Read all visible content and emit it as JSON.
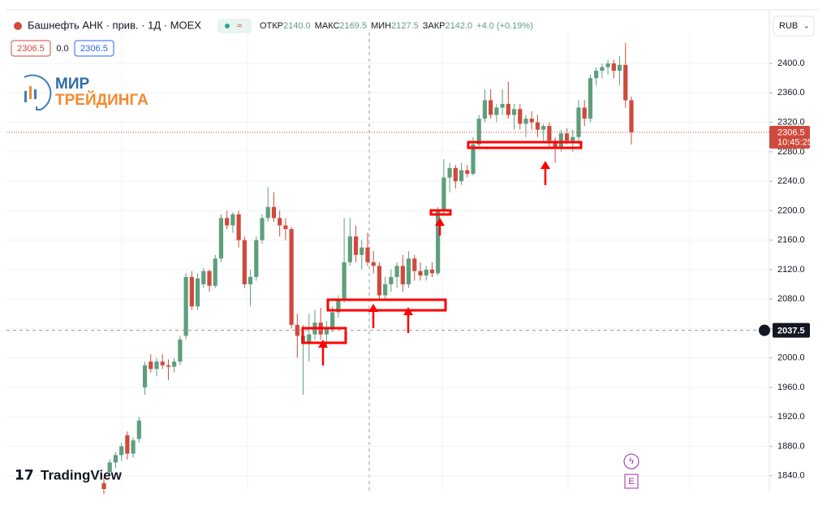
{
  "header": {
    "symbol": "Башнефть АНК · прив. · 1Д · MOEX",
    "open_label": "ОТКР",
    "open": "2140.0",
    "high_label": "МАКС",
    "high": "2169.5",
    "low_label": "МИН",
    "low": "2127.5",
    "close_label": "ЗАКР",
    "close": "2142.0",
    "change": "+4.0 (+0.19%)",
    "sell": "2306.5",
    "spread": "0.0",
    "buy": "2306.5",
    "currency": "RUB"
  },
  "logo": {
    "line1": "МИР",
    "line2": "ТРЕЙДИНГА"
  },
  "brand": "TradingView",
  "event_marker": "E",
  "chart_data": {
    "type": "candlestick",
    "color_up": "#5f9e7d",
    "color_down": "#cf4a3c",
    "ylim": [
      1822,
      2442
    ],
    "yticks": [
      {
        "value": 1840,
        "label": "1840.0"
      },
      {
        "value": 1880,
        "label": "1880.0"
      },
      {
        "value": 1920,
        "label": "1920.0"
      },
      {
        "value": 1960,
        "label": "1960.0"
      },
      {
        "value": 2000,
        "label": "2000.0"
      },
      {
        "value": 2040,
        "label": "2040.0"
      },
      {
        "value": 2080,
        "label": "2080.0"
      },
      {
        "value": 2120,
        "label": "2120.0"
      },
      {
        "value": 2160,
        "label": "2160.0"
      },
      {
        "value": 2200,
        "label": "2200.0"
      },
      {
        "value": 2240,
        "label": "2240.0"
      },
      {
        "value": 2280,
        "label": "2280.0"
      },
      {
        "value": 2320,
        "label": "2320.0"
      },
      {
        "value": 2360,
        "label": "2360.0"
      },
      {
        "value": 2400,
        "label": "2400.0"
      }
    ],
    "grid": true,
    "last_price": 2306.5,
    "last_time": "10:45:25",
    "crosshair_price": 2037.5,
    "candles": [
      {
        "o": 1830,
        "h": 1838,
        "l": 1815,
        "c": 1822
      },
      {
        "o": 1845,
        "h": 1862,
        "l": 1840,
        "c": 1858
      },
      {
        "o": 1858,
        "h": 1872,
        "l": 1850,
        "c": 1868
      },
      {
        "o": 1868,
        "h": 1885,
        "l": 1860,
        "c": 1880
      },
      {
        "o": 1895,
        "h": 1900,
        "l": 1862,
        "c": 1870
      },
      {
        "o": 1870,
        "h": 1892,
        "l": 1865,
        "c": 1888
      },
      {
        "o": 1890,
        "h": 1920,
        "l": 1885,
        "c": 1915
      },
      {
        "o": 1960,
        "h": 1995,
        "l": 1950,
        "c": 1990
      },
      {
        "o": 1995,
        "h": 2005,
        "l": 1980,
        "c": 1985
      },
      {
        "o": 1985,
        "h": 2000,
        "l": 1975,
        "c": 1995
      },
      {
        "o": 1995,
        "h": 2005,
        "l": 1985,
        "c": 1990
      },
      {
        "o": 1990,
        "h": 1998,
        "l": 1970,
        "c": 1988
      },
      {
        "o": 1988,
        "h": 2000,
        "l": 1980,
        "c": 1995
      },
      {
        "o": 1995,
        "h": 2030,
        "l": 1990,
        "c": 2025
      },
      {
        "o": 2030,
        "h": 2115,
        "l": 2025,
        "c": 2110
      },
      {
        "o": 2110,
        "h": 2118,
        "l": 2065,
        "c": 2070
      },
      {
        "o": 2070,
        "h": 2115,
        "l": 2065,
        "c": 2108
      },
      {
        "o": 2100,
        "h": 2122,
        "l": 2095,
        "c": 2118
      },
      {
        "o": 2118,
        "h": 2120,
        "l": 2090,
        "c": 2098
      },
      {
        "o": 2098,
        "h": 2140,
        "l": 2095,
        "c": 2135
      },
      {
        "o": 2135,
        "h": 2195,
        "l": 2130,
        "c": 2190
      },
      {
        "o": 2190,
        "h": 2200,
        "l": 2175,
        "c": 2180
      },
      {
        "o": 2180,
        "h": 2198,
        "l": 2170,
        "c": 2195
      },
      {
        "o": 2195,
        "h": 2200,
        "l": 2150,
        "c": 2160
      },
      {
        "o": 2160,
        "h": 2165,
        "l": 2095,
        "c": 2100
      },
      {
        "o": 2100,
        "h": 2120,
        "l": 2070,
        "c": 2110
      },
      {
        "o": 2110,
        "h": 2165,
        "l": 2105,
        "c": 2160
      },
      {
        "o": 2160,
        "h": 2195,
        "l": 2155,
        "c": 2190
      },
      {
        "o": 2190,
        "h": 2232,
        "l": 2185,
        "c": 2205
      },
      {
        "o": 2205,
        "h": 2225,
        "l": 2185,
        "c": 2190
      },
      {
        "o": 2190,
        "h": 2200,
        "l": 2165,
        "c": 2180
      },
      {
        "o": 2180,
        "h": 2190,
        "l": 2160,
        "c": 2175
      },
      {
        "o": 2175,
        "h": 2178,
        "l": 2040,
        "c": 2045
      },
      {
        "o": 2045,
        "h": 2060,
        "l": 2000,
        "c": 2030
      },
      {
        "o": 2020,
        "h": 2045,
        "l": 1950,
        "c": 2030
      },
      {
        "o": 2020,
        "h": 2060,
        "l": 1995,
        "c": 2032
      },
      {
        "o": 2032,
        "h": 2065,
        "l": 2025,
        "c": 2048
      },
      {
        "o": 2048,
        "h": 2068,
        "l": 2025,
        "c": 2032
      },
      {
        "o": 2032,
        "h": 2050,
        "l": 2015,
        "c": 2042
      },
      {
        "o": 2042,
        "h": 2070,
        "l": 2035,
        "c": 2062
      },
      {
        "o": 2062,
        "h": 2085,
        "l": 2055,
        "c": 2080
      },
      {
        "o": 2080,
        "h": 2190,
        "l": 2075,
        "c": 2130
      },
      {
        "o": 2130,
        "h": 2190,
        "l": 2125,
        "c": 2165
      },
      {
        "o": 2165,
        "h": 2180,
        "l": 2130,
        "c": 2140
      },
      {
        "o": 2140,
        "h": 2160,
        "l": 2120,
        "c": 2150
      },
      {
        "o": 2150,
        "h": 2170,
        "l": 2125,
        "c": 2130
      },
      {
        "o": 2130,
        "h": 2145,
        "l": 2115,
        "c": 2125
      },
      {
        "o": 2125,
        "h": 2130,
        "l": 2080,
        "c": 2085
      },
      {
        "o": 2085,
        "h": 2110,
        "l": 2080,
        "c": 2100
      },
      {
        "o": 2100,
        "h": 2120,
        "l": 2090,
        "c": 2110
      },
      {
        "o": 2110,
        "h": 2130,
        "l": 2095,
        "c": 2125
      },
      {
        "o": 2125,
        "h": 2140,
        "l": 2090,
        "c": 2100
      },
      {
        "o": 2100,
        "h": 2145,
        "l": 2095,
        "c": 2135
      },
      {
        "o": 2135,
        "h": 2140,
        "l": 2105,
        "c": 2118
      },
      {
        "o": 2118,
        "h": 2130,
        "l": 2105,
        "c": 2112
      },
      {
        "o": 2112,
        "h": 2125,
        "l": 2105,
        "c": 2120
      },
      {
        "o": 2120,
        "h": 2130,
        "l": 2110,
        "c": 2115
      },
      {
        "o": 2115,
        "h": 2205,
        "l": 2112,
        "c": 2200
      },
      {
        "o": 2200,
        "h": 2270,
        "l": 2195,
        "c": 2245
      },
      {
        "o": 2245,
        "h": 2265,
        "l": 2225,
        "c": 2258
      },
      {
        "o": 2258,
        "h": 2262,
        "l": 2230,
        "c": 2240
      },
      {
        "o": 2240,
        "h": 2265,
        "l": 2235,
        "c": 2255
      },
      {
        "o": 2255,
        "h": 2262,
        "l": 2245,
        "c": 2250
      },
      {
        "o": 2250,
        "h": 2300,
        "l": 2248,
        "c": 2290
      },
      {
        "o": 2290,
        "h": 2330,
        "l": 2285,
        "c": 2325
      },
      {
        "o": 2325,
        "h": 2365,
        "l": 2320,
        "c": 2350
      },
      {
        "o": 2350,
        "h": 2365,
        "l": 2325,
        "c": 2330
      },
      {
        "o": 2330,
        "h": 2345,
        "l": 2320,
        "c": 2340
      },
      {
        "o": 2340,
        "h": 2365,
        "l": 2330,
        "c": 2345
      },
      {
        "o": 2345,
        "h": 2375,
        "l": 2325,
        "c": 2330
      },
      {
        "o": 2330,
        "h": 2345,
        "l": 2310,
        "c": 2338
      },
      {
        "o": 2338,
        "h": 2345,
        "l": 2310,
        "c": 2318
      },
      {
        "o": 2318,
        "h": 2330,
        "l": 2300,
        "c": 2325
      },
      {
        "o": 2325,
        "h": 2335,
        "l": 2310,
        "c": 2320
      },
      {
        "o": 2320,
        "h": 2330,
        "l": 2300,
        "c": 2310
      },
      {
        "o": 2310,
        "h": 2318,
        "l": 2295,
        "c": 2315
      },
      {
        "o": 2315,
        "h": 2320,
        "l": 2285,
        "c": 2295
      },
      {
        "o": 2295,
        "h": 2300,
        "l": 2265,
        "c": 2285
      },
      {
        "o": 2285,
        "h": 2310,
        "l": 2280,
        "c": 2305
      },
      {
        "o": 2305,
        "h": 2312,
        "l": 2290,
        "c": 2295
      },
      {
        "o": 2295,
        "h": 2310,
        "l": 2280,
        "c": 2300
      },
      {
        "o": 2300,
        "h": 2350,
        "l": 2290,
        "c": 2340
      },
      {
        "o": 2340,
        "h": 2350,
        "l": 2315,
        "c": 2325
      },
      {
        "o": 2325,
        "h": 2385,
        "l": 2320,
        "c": 2380
      },
      {
        "o": 2380,
        "h": 2395,
        "l": 2370,
        "c": 2390
      },
      {
        "o": 2390,
        "h": 2400,
        "l": 2380,
        "c": 2395
      },
      {
        "o": 2395,
        "h": 2405,
        "l": 2385,
        "c": 2400
      },
      {
        "o": 2400,
        "h": 2405,
        "l": 2380,
        "c": 2390
      },
      {
        "o": 2390,
        "h": 2410,
        "l": 2370,
        "c": 2398
      },
      {
        "o": 2398,
        "h": 2428,
        "l": 2340,
        "c": 2350
      },
      {
        "o": 2350,
        "h": 2355,
        "l": 2290,
        "c": 2306.5
      }
    ]
  }
}
